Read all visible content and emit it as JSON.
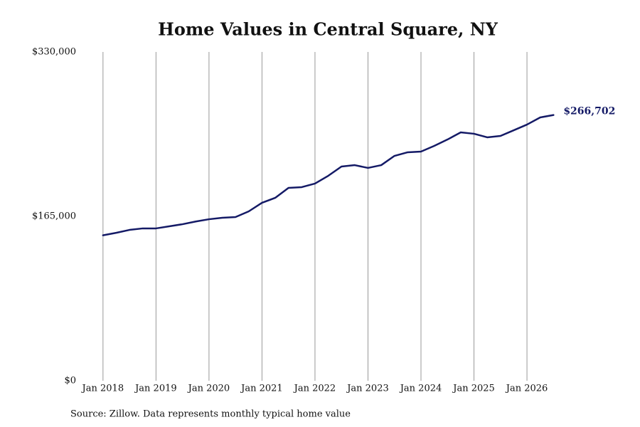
{
  "chart_data": {
    "type": "line",
    "title": "Home Values in Central Square, NY",
    "source": "Source: Zillow. Data represents monthly typical home value",
    "x": [
      "2018-01",
      "2018-04",
      "2018-07",
      "2018-10",
      "2019-01",
      "2019-04",
      "2019-07",
      "2019-10",
      "2020-01",
      "2020-04",
      "2020-07",
      "2020-10",
      "2021-01",
      "2021-04",
      "2021-07",
      "2021-10",
      "2022-01",
      "2022-04",
      "2022-07",
      "2022-10",
      "2023-01",
      "2023-04",
      "2023-07",
      "2023-10",
      "2024-01",
      "2024-04",
      "2024-07",
      "2024-10",
      "2025-01",
      "2025-04",
      "2025-07",
      "2025-10",
      "2026-01",
      "2026-04",
      "2026-07"
    ],
    "series": [
      {
        "color": "#141a66",
        "values": [
          146000,
          148500,
          151400,
          152900,
          152900,
          155000,
          157100,
          159800,
          162100,
          163600,
          164300,
          170000,
          178600,
          183600,
          193600,
          194300,
          197900,
          205700,
          215000,
          216400,
          213600,
          216400,
          225700,
          229300,
          230000,
          235700,
          242100,
          249300,
          247900,
          244300,
          245700,
          251400,
          257100,
          264300,
          266702
        ],
        "value_labels": [
          null,
          null,
          null,
          null,
          null,
          null,
          null,
          null,
          null,
          null,
          null,
          null,
          null,
          null,
          null,
          null,
          null,
          null,
          null,
          null,
          null,
          null,
          null,
          null,
          null,
          null,
          null,
          null,
          null,
          null,
          null,
          null,
          null,
          null,
          "$266,702"
        ]
      }
    ],
    "xlim": [
      "2017-09",
      "2027-03"
    ],
    "xticks": [
      {
        "value": "2018-01",
        "label": "Jan 2018"
      },
      {
        "value": "2019-01",
        "label": "Jan 2019"
      },
      {
        "value": "2020-01",
        "label": "Jan 2020"
      },
      {
        "value": "2021-01",
        "label": "Jan 2021"
      },
      {
        "value": "2022-01",
        "label": "Jan 2022"
      },
      {
        "value": "2023-01",
        "label": "Jan 2023"
      },
      {
        "value": "2024-01",
        "label": "Jan 2024"
      },
      {
        "value": "2025-01",
        "label": "Jan 2025"
      },
      {
        "value": "2026-01",
        "label": "Jan 2026"
      }
    ],
    "ylim": [
      0,
      330000
    ],
    "yticks": [
      {
        "value": 0,
        "label": "$0"
      },
      {
        "value": 165000,
        "label": "$165,000"
      },
      {
        "value": 330000,
        "label": "$330,000"
      }
    ],
    "grid": "x"
  }
}
